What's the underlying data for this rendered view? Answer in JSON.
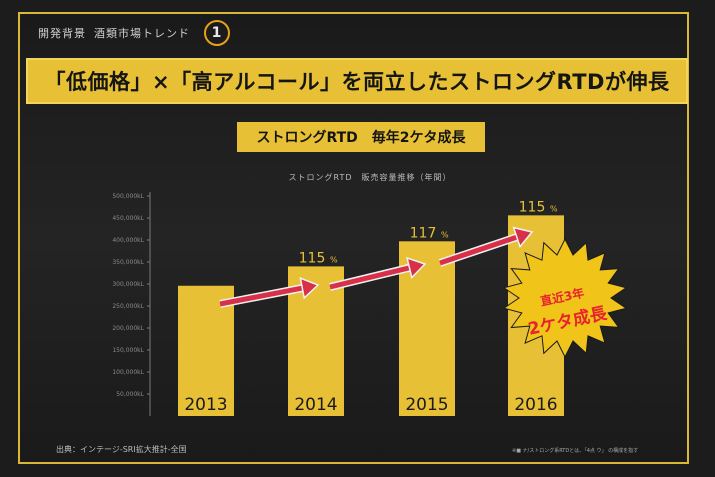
{
  "breadcrumb": {
    "section": "開発背景",
    "topic": "酒類市場トレンド",
    "step": "1"
  },
  "headline": "「低価格」×「高アルコール」を両立したストロングRTDが伸長",
  "sub_headline": "ストロングRTD　毎年2ケタ成長",
  "burst": {
    "line1": "直近3年",
    "line2": "2ケタ成長"
  },
  "footer": {
    "source": "出典：インテージ-SRI拡大推計-全国",
    "note": "※■ ナ/ストロング系RTDとは、「4点 ウ」 の構成を指す"
  },
  "colors": {
    "frame": "#d9b836",
    "bar": "#e7c035",
    "arrow": "#d9304a",
    "growth_label": "#e7c035",
    "burst": "#f0c419",
    "burst_text": "#e8232e"
  },
  "chart_data": {
    "type": "bar",
    "title": "ストロングRTD　販売容量推移（年間）",
    "categories": [
      "2013",
      "2014",
      "2015",
      "2016"
    ],
    "values": [
      296000,
      340000,
      397000,
      456000
    ],
    "growth_labels": [
      "",
      "115",
      "117",
      "115"
    ],
    "growth_unit": "%",
    "yticks": [
      "500,000kL",
      "450,000kL",
      "400,000kL",
      "350,000kL",
      "300,000kL",
      "250,000kL",
      "200,000kL",
      "150,000kL",
      "100,000kL",
      "50,000kL"
    ],
    "ylim": [
      0,
      500000
    ],
    "xlabel": "",
    "ylabel": "",
    "grid": false
  }
}
